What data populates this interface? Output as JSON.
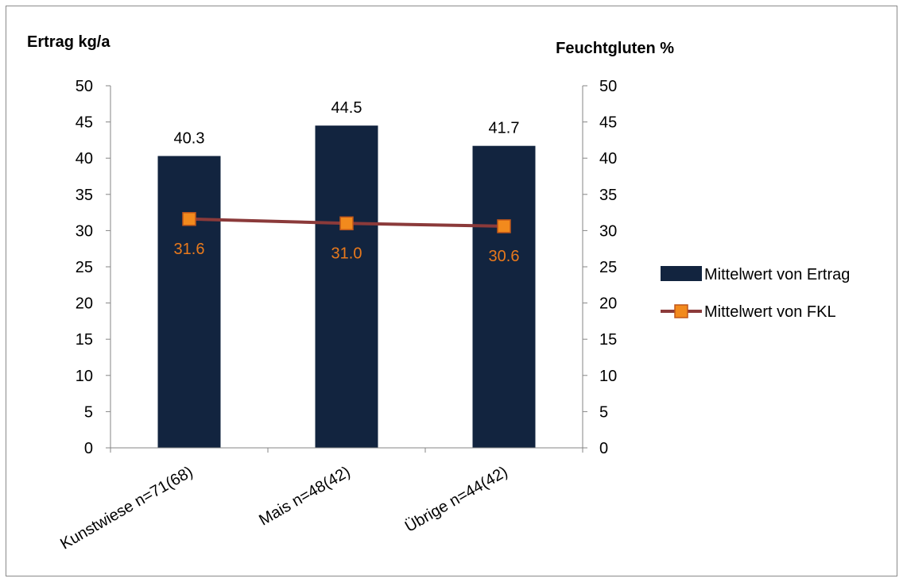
{
  "chart_data": {
    "type": "bar",
    "categories": [
      "Kunstwiese n=71(68)",
      "Mais n=48(42)",
      "Übrige n=44(42)"
    ],
    "series": [
      {
        "name": "Mittelwert von Ertrag",
        "type": "bar",
        "axis": "left",
        "values": [
          40.3,
          44.5,
          41.7
        ],
        "labels": [
          "40.3",
          "44.5",
          "41.7"
        ],
        "color": "#12243f"
      },
      {
        "name": "Mittelwert von FKL",
        "type": "line",
        "axis": "right",
        "values": [
          31.6,
          31.0,
          30.6
        ],
        "labels": [
          "31.6",
          "31.0",
          "30.6"
        ],
        "color": "#8b3a3a",
        "marker_color": "#f28a1d",
        "label_color": "#e8791c"
      }
    ],
    "ylabel": "Ertrag kg/a",
    "y2label": "Feuchtgluten %",
    "ylim": [
      0,
      50
    ],
    "y2lim": [
      0,
      50
    ],
    "yticks": [
      0,
      5,
      10,
      15,
      20,
      25,
      30,
      35,
      40,
      45,
      50
    ],
    "ytick_labels": [
      "0",
      "5",
      "10",
      "15",
      "20",
      "25",
      "30",
      "35",
      "40",
      "45",
      "50"
    ],
    "y2tick_labels": [
      "0",
      "5",
      "10",
      "15",
      "20",
      "25",
      "30",
      "35",
      "40",
      "45",
      "50"
    ],
    "grid": false,
    "legend": "right"
  }
}
